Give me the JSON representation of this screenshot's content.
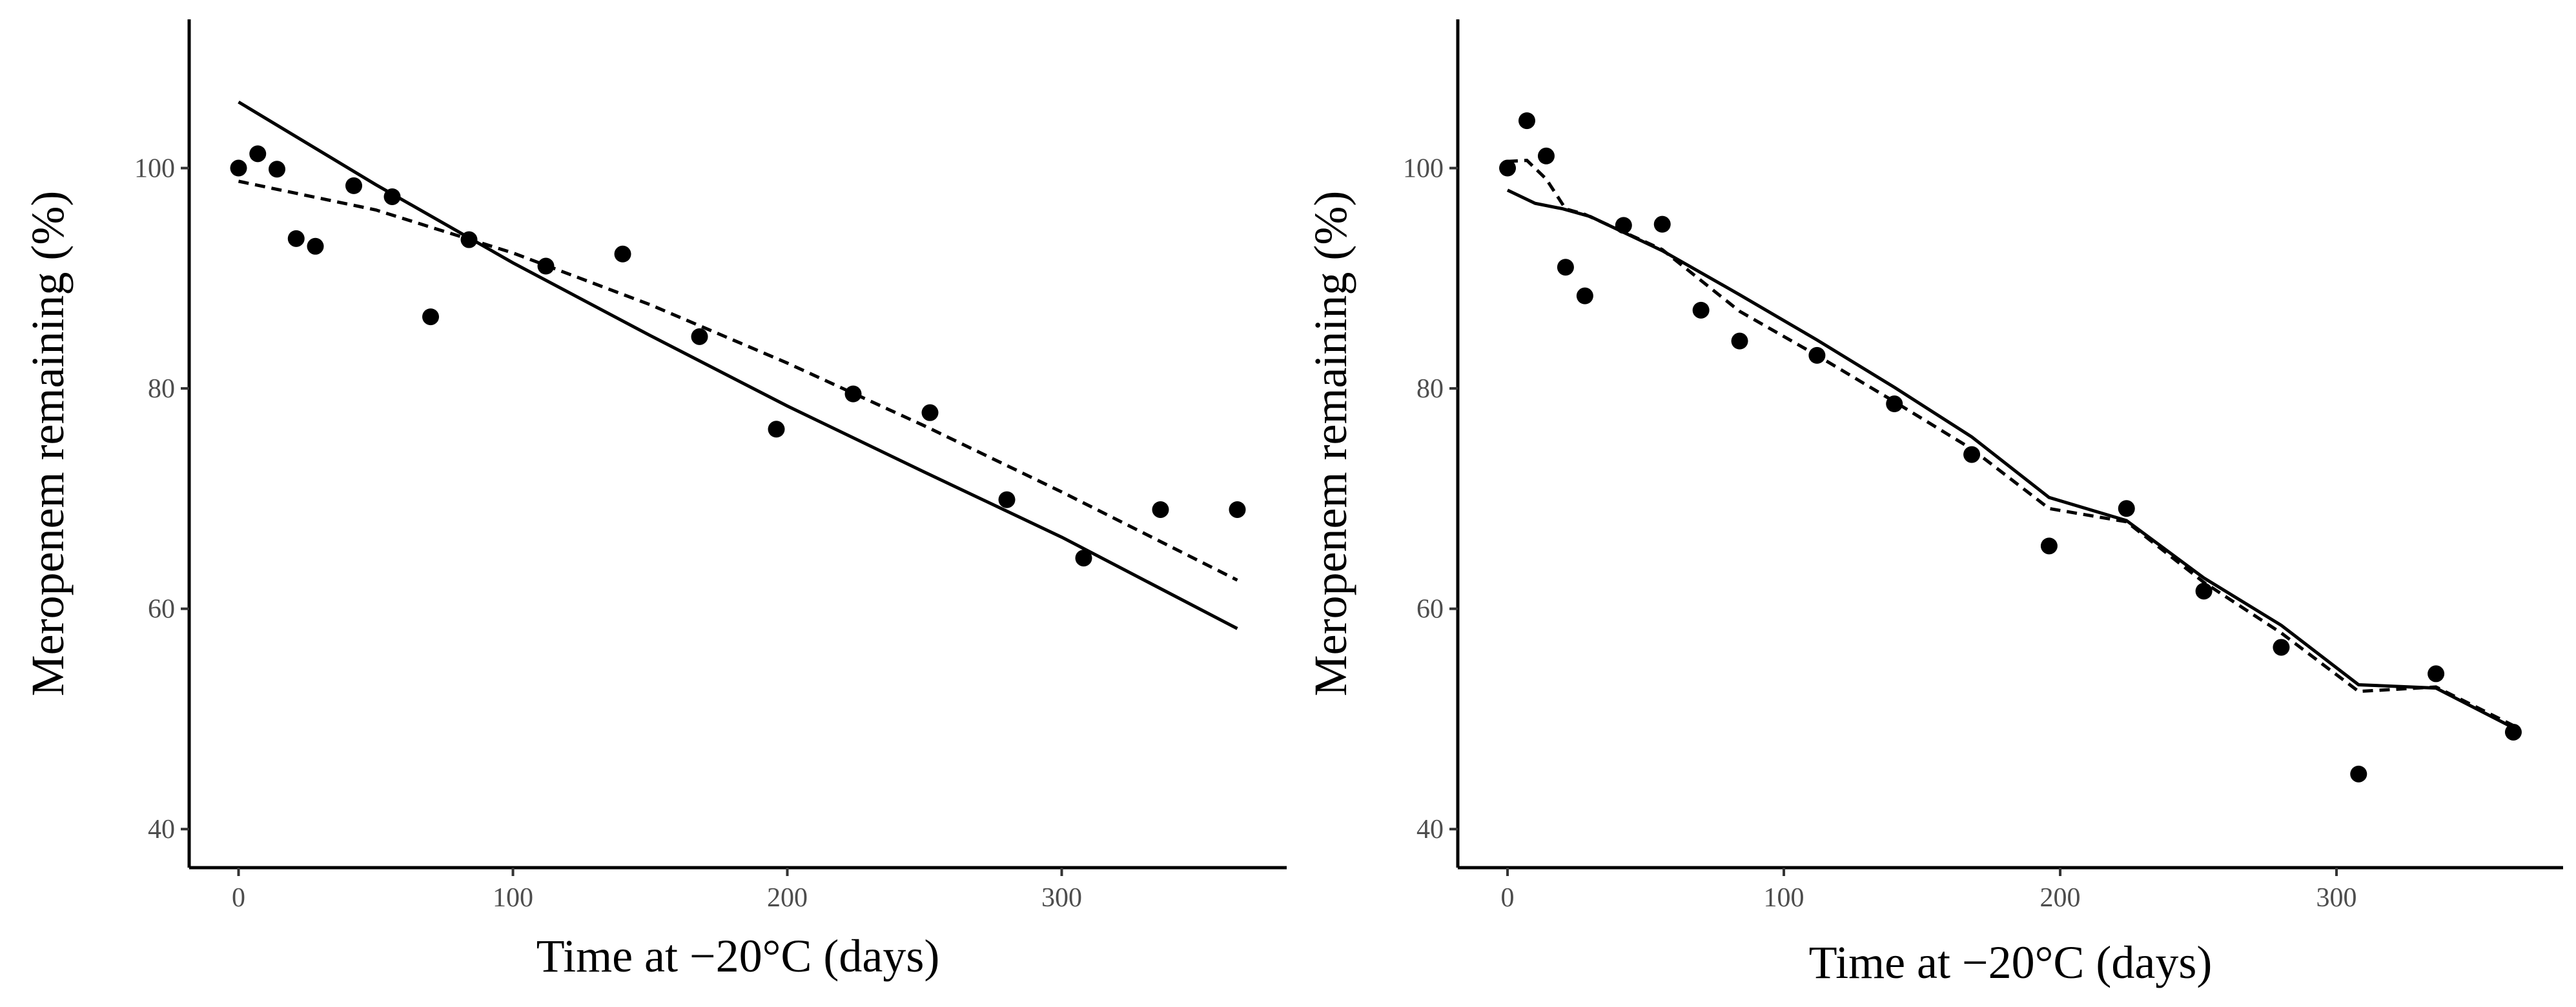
{
  "chart_data": [
    {
      "type": "scatter",
      "panel": "left",
      "xlabel": "Time at −20°C (days)",
      "ylabel": "Meropenem remaining (%)",
      "xlim": [
        -18,
        382
      ],
      "ylim": [
        36.5,
        113.5
      ],
      "xticks": [
        0,
        100,
        200,
        300
      ],
      "yticks": [
        40,
        60,
        80,
        100
      ],
      "grid": false,
      "series": [
        {
          "name": "observed",
          "style": "points",
          "x": [
            0,
            7,
            14,
            21,
            28,
            42,
            56,
            70,
            84,
            112,
            140,
            168,
            196,
            224,
            252,
            280,
            308,
            336,
            364
          ],
          "y": [
            100.0,
            101.3,
            99.9,
            93.6,
            92.9,
            98.4,
            97.4,
            86.5,
            93.5,
            91.1,
            92.2,
            84.7,
            76.3,
            79.5,
            77.8,
            69.9,
            64.6,
            69.0,
            69.0
          ]
        },
        {
          "name": "fit-solid",
          "style": "solid",
          "x": [
            0,
            50,
            100,
            150,
            200,
            250,
            300,
            364
          ],
          "y": [
            106.0,
            98.5,
            91.4,
            84.8,
            78.4,
            72.4,
            66.5,
            58.2
          ]
        },
        {
          "name": "fit-dashed",
          "style": "dashed",
          "x": [
            0,
            50,
            100,
            150,
            200,
            250,
            300,
            364
          ],
          "y": [
            98.8,
            96.2,
            92.3,
            87.6,
            82.3,
            76.6,
            70.6,
            62.6
          ]
        }
      ]
    },
    {
      "type": "scatter",
      "panel": "right",
      "xlabel": "Time at −20°C (days)",
      "ylabel": "Meropenem remaining (%)",
      "xlim": [
        -18,
        382
      ],
      "ylim": [
        36.5,
        113.5
      ],
      "xticks": [
        0,
        100,
        200,
        300
      ],
      "yticks": [
        40,
        60,
        80,
        100
      ],
      "grid": false,
      "series": [
        {
          "name": "observed",
          "style": "points",
          "x": [
            0,
            7,
            14,
            21,
            28,
            42,
            56,
            70,
            84,
            112,
            140,
            168,
            196,
            224,
            252,
            280,
            308,
            336,
            364
          ],
          "y": [
            100.0,
            104.3,
            101.1,
            91.0,
            88.4,
            94.8,
            94.9,
            87.1,
            84.3,
            83.0,
            78.6,
            74.0,
            65.7,
            69.1,
            61.6,
            56.5,
            45.0,
            54.1,
            48.8
          ]
        },
        {
          "name": "fit-solid",
          "style": "solid",
          "x": [
            0,
            10,
            20,
            30,
            56,
            84,
            112,
            140,
            168,
            196,
            224,
            252,
            280,
            308,
            336,
            364
          ],
          "y": [
            98.0,
            96.8,
            96.3,
            95.6,
            92.5,
            88.5,
            84.4,
            80.1,
            75.6,
            70.1,
            68.0,
            62.8,
            58.5,
            53.1,
            52.8,
            49.2
          ]
        },
        {
          "name": "fit-dashed",
          "style": "dashed",
          "x": [
            0,
            7,
            14,
            21,
            28,
            56,
            84,
            112,
            140,
            168,
            196,
            224,
            252,
            280,
            308,
            336,
            364
          ],
          "y": [
            100.6,
            100.7,
            99.0,
            96.3,
            95.8,
            92.6,
            87.0,
            83.0,
            78.8,
            74.5,
            69.1,
            67.9,
            62.4,
            57.8,
            52.5,
            52.9,
            49.4
          ]
        }
      ]
    }
  ]
}
